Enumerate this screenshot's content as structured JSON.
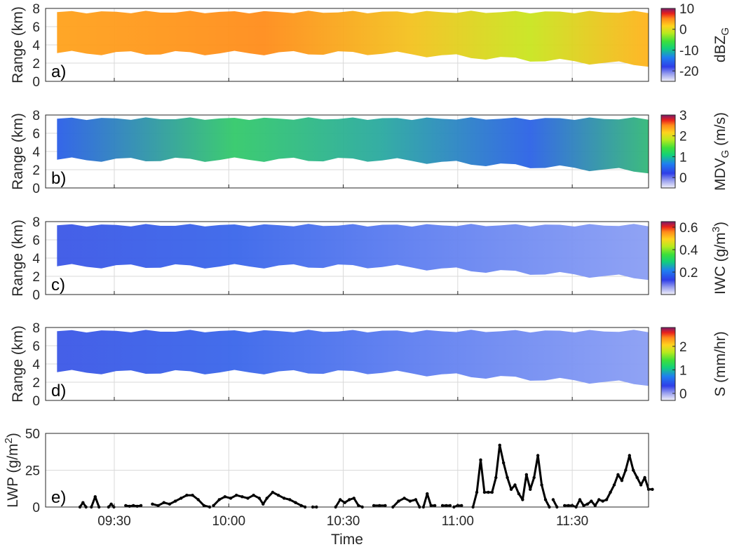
{
  "chart_data": {
    "type": "heatmap",
    "x_axis": {
      "label": "Time",
      "ticks": [
        "09:30",
        "10:00",
        "10:30",
        "11:00",
        "11:30"
      ],
      "tick_minutes": [
        570,
        600,
        630,
        660,
        690
      ],
      "range_minutes": [
        552,
        710
      ]
    },
    "panels": [
      {
        "id": "a",
        "panel_label": "a)",
        "ylabel": "Range (km)",
        "yticks": [
          "0",
          "2",
          "4",
          "6",
          "8"
        ],
        "ylim": [
          0,
          8
        ],
        "colorbar": {
          "label": "dBZ",
          "label_sub": "G",
          "label_sup": "",
          "label_unit": "",
          "ticks": [
            "10",
            "0",
            "-10",
            "-20"
          ],
          "tick_values": [
            10,
            0,
            -10,
            -20
          ],
          "range": [
            -25,
            10
          ],
          "colormap": "jet-light"
        }
      },
      {
        "id": "b",
        "panel_label": "b)",
        "ylabel": "Range (km)",
        "yticks": [
          "0",
          "2",
          "4",
          "6",
          "8"
        ],
        "ylim": [
          0,
          8
        ],
        "colorbar": {
          "label": "MDV",
          "label_sub": "G",
          "label_sup": "",
          "label_unit": " (m/s)",
          "ticks": [
            "3",
            "2",
            "1",
            "0"
          ],
          "tick_values": [
            3,
            2,
            1,
            0
          ],
          "range": [
            -0.5,
            3
          ],
          "colormap": "jet-light"
        }
      },
      {
        "id": "c",
        "panel_label": "c)",
        "ylabel": "Range (km)",
        "yticks": [
          "0",
          "2",
          "4",
          "6",
          "8"
        ],
        "ylim": [
          0,
          8
        ],
        "colorbar": {
          "label": "IWC (g/m",
          "label_sub": "",
          "label_sup": "3",
          "label_unit": ")",
          "ticks": [
            "0.6",
            "0.4",
            "0.2"
          ],
          "tick_values": [
            0.6,
            0.4,
            0.2
          ],
          "range": [
            0,
            0.65
          ],
          "colormap": "jet-light"
        }
      },
      {
        "id": "d",
        "panel_label": "d)",
        "ylabel": "Range (km)",
        "yticks": [
          "0",
          "2",
          "4",
          "6",
          "8"
        ],
        "ylim": [
          0,
          8
        ],
        "colorbar": {
          "label": "S (mm/hr)",
          "label_sub": "",
          "label_sup": "",
          "label_unit": "",
          "ticks": [
            "2",
            "1",
            "0"
          ],
          "tick_values": [
            2,
            1,
            0
          ],
          "range": [
            -0.3,
            2.8
          ],
          "colormap": "jet-light"
        }
      }
    ],
    "line_panel": {
      "id": "e",
      "panel_label": "e)",
      "type": "line",
      "ylabel_main": "LWP (g/m",
      "ylabel_sup": "2",
      "ylabel_end": ")",
      "yticks": [
        "0",
        "25",
        "50"
      ],
      "ylim": [
        0,
        50
      ],
      "segments": [
        [
          [
            561,
            0
          ],
          [
            561.8,
            3
          ],
          [
            562.6,
            0
          ]
        ],
        [
          [
            564,
            0
          ],
          [
            565,
            7
          ],
          [
            566,
            0
          ]
        ],
        [
          [
            568.5,
            0
          ],
          [
            569.2,
            2
          ],
          [
            569.9,
            0
          ]
        ],
        [
          [
            573,
            1
          ],
          [
            574,
            0.5
          ],
          [
            575,
            1
          ],
          [
            576,
            0.5
          ],
          [
            577,
            1
          ]
        ],
        [
          [
            580,
            2
          ],
          [
            581.5,
            1
          ],
          [
            583,
            3
          ],
          [
            584.5,
            2
          ],
          [
            586,
            4
          ],
          [
            587.5,
            6
          ],
          [
            589,
            8
          ],
          [
            590.5,
            8
          ],
          [
            592,
            5
          ],
          [
            593.5,
            1
          ],
          [
            595,
            0
          ]
        ],
        [
          [
            596,
            1
          ],
          [
            597.5,
            5
          ],
          [
            599,
            7
          ],
          [
            600.5,
            6
          ],
          [
            602,
            8
          ],
          [
            603.5,
            7
          ],
          [
            605,
            6
          ],
          [
            606.5,
            8
          ],
          [
            608,
            6
          ],
          [
            609,
            2
          ],
          [
            610,
            6
          ],
          [
            611.5,
            10
          ],
          [
            613,
            8
          ],
          [
            614.5,
            6
          ],
          [
            616,
            5
          ],
          [
            617.5,
            3
          ],
          [
            619,
            1
          ],
          [
            620,
            0
          ]
        ],
        [
          [
            622,
            0
          ],
          [
            623,
            0
          ]
        ],
        [
          [
            628,
            0
          ],
          [
            629.2,
            5
          ],
          [
            630.4,
            3
          ],
          [
            631.6,
            5
          ],
          [
            632.8,
            6
          ],
          [
            634,
            1
          ],
          [
            635,
            0
          ]
        ],
        [
          [
            638,
            1
          ],
          [
            639.5,
            1
          ],
          [
            641,
            1
          ]
        ],
        [
          [
            643,
            0
          ],
          [
            644.5,
            4
          ],
          [
            646,
            6
          ],
          [
            647.5,
            4
          ],
          [
            649,
            5
          ],
          [
            650,
            0
          ]
        ],
        [
          [
            651,
            0
          ],
          [
            652,
            9
          ],
          [
            653,
            1
          ],
          [
            654,
            1
          ]
        ],
        [
          [
            656,
            1
          ],
          [
            657,
            1
          ],
          [
            658,
            1
          ]
        ],
        [
          [
            659,
            0
          ],
          [
            660,
            1
          ],
          [
            661,
            1
          ]
        ],
        [
          [
            664,
            0
          ],
          [
            665,
            10
          ],
          [
            666,
            32
          ],
          [
            667,
            10
          ],
          [
            668,
            10
          ],
          [
            669,
            10
          ],
          [
            670,
            20
          ],
          [
            671,
            42
          ],
          [
            672,
            30
          ],
          [
            673,
            20
          ],
          [
            674,
            12
          ],
          [
            675,
            15
          ],
          [
            676,
            9
          ],
          [
            677,
            5
          ],
          [
            678,
            22
          ],
          [
            679,
            12
          ],
          [
            680,
            20
          ],
          [
            681,
            35
          ],
          [
            682,
            15
          ],
          [
            683,
            5
          ],
          [
            684,
            0
          ]
        ],
        [
          [
            685,
            5
          ],
          [
            686,
            0
          ]
        ],
        [
          [
            688,
            1
          ],
          [
            689,
            1
          ],
          [
            690,
            1
          ],
          [
            691,
            0
          ],
          [
            692,
            5
          ],
          [
            693,
            1
          ],
          [
            694,
            2
          ],
          [
            695,
            4
          ],
          [
            696,
            1
          ],
          [
            697,
            5
          ],
          [
            698,
            4
          ],
          [
            699,
            5
          ],
          [
            700,
            10
          ],
          [
            701,
            15
          ],
          [
            702,
            22
          ],
          [
            703,
            18
          ],
          [
            704,
            25
          ],
          [
            705,
            35
          ],
          [
            706,
            25
          ],
          [
            707,
            20
          ],
          [
            708,
            15
          ],
          [
            709,
            20
          ],
          [
            710,
            12
          ],
          [
            711,
            12
          ]
        ]
      ]
    }
  }
}
